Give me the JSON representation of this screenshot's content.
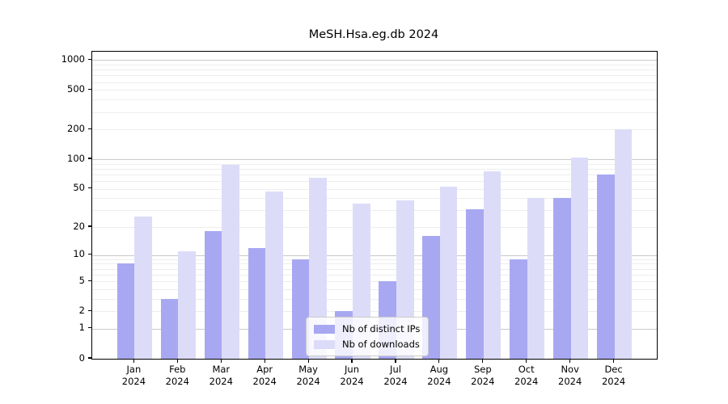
{
  "chart_data": {
    "type": "bar",
    "title": "MeSH.Hsa.eg.db 2024",
    "year": "2024",
    "categories": [
      "Jan",
      "Feb",
      "Mar",
      "Apr",
      "May",
      "Jun",
      "Jul",
      "Aug",
      "Sep",
      "Oct",
      "Nov",
      "Dec"
    ],
    "series": [
      {
        "name": "Nb of distinct IPs",
        "color": "#a8a8f2",
        "values": [
          8,
          3,
          18,
          12,
          9,
          2,
          5,
          16,
          31,
          9,
          40,
          70
        ]
      },
      {
        "name": "Nb of downloads",
        "color": "#dcdcf9",
        "values": [
          26,
          11,
          88,
          47,
          65,
          35,
          38,
          53,
          76,
          40,
          103,
          199
        ]
      }
    ],
    "yscale": "log1p",
    "ylim": [
      0,
      1210
    ],
    "yticks": [
      0,
      1,
      2,
      5,
      10,
      20,
      50,
      100,
      200,
      500,
      1000
    ],
    "major_gridlines": [
      1,
      10,
      100,
      1000
    ],
    "minor_gridline_decades": [
      1,
      10,
      100
    ],
    "grid": true,
    "legend_position": "bottom-center",
    "xlabel": "",
    "ylabel": ""
  },
  "colors": {
    "background": "#ffffff",
    "spine": "#000000",
    "text": "#000000",
    "major_grid": "#c9c9c9",
    "minor_grid": "#ededed",
    "legend_border": "#cccccc",
    "legend_background": "rgba(255,255,255,0.8)"
  }
}
